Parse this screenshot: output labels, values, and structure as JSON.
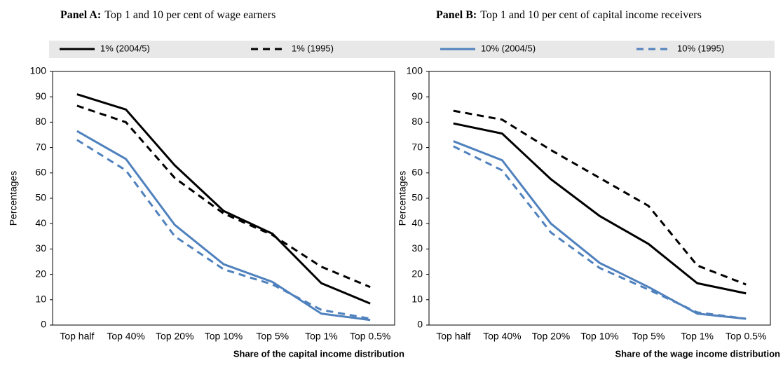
{
  "chart_data": [
    {
      "type": "line",
      "title_label": "Panel A:",
      "title": "Top 1 and 10 per cent of wage earners",
      "x_label": "Share of the capital income distribution",
      "y_label": "Percentages",
      "categories": [
        "Top half",
        "Top 40%",
        "Top 20%",
        "Top 10%",
        "Top 5%",
        "Top 1%",
        "Top 0.5%"
      ],
      "ylim": [
        0,
        100
      ],
      "yticks": [
        0,
        10,
        20,
        30,
        40,
        50,
        60,
        70,
        80,
        90,
        100
      ],
      "series": [
        {
          "name": "1% (2004/5)",
          "color": "#000000",
          "dashed": false,
          "values": [
            91,
            85,
            63,
            45,
            36,
            16.5,
            8.5
          ]
        },
        {
          "name": "1% (1995)",
          "color": "#000000",
          "dashed": true,
          "values": [
            86.5,
            80,
            58,
            44,
            35.5,
            23,
            15
          ]
        },
        {
          "name": "10% (2004/5)",
          "color": "#4f81bd",
          "dashed": false,
          "values": [
            76.5,
            65.5,
            39.5,
            24,
            17,
            4.5,
            2
          ]
        },
        {
          "name": "10% (1995)",
          "color": "#4f81bd",
          "dashed": true,
          "values": [
            73,
            61,
            35,
            22,
            16,
            6,
            2.5
          ]
        }
      ]
    },
    {
      "type": "line",
      "title_label": "Panel B:",
      "title": "Top 1 and 10 per cent of capital income receivers",
      "x_label": "Share of the wage income distribution",
      "y_label": "Percentages",
      "categories": [
        "Top half",
        "Top 40%",
        "Top 20%",
        "Top 10%",
        "Top 5%",
        "Top 1%",
        "Top 0.5%"
      ],
      "ylim": [
        0,
        100
      ],
      "yticks": [
        0,
        10,
        20,
        30,
        40,
        50,
        60,
        70,
        80,
        90,
        100
      ],
      "series": [
        {
          "color": "#000000",
          "dashed": false,
          "values": [
            79.5,
            75.5,
            57.5,
            43,
            32,
            16.5,
            12.5
          ]
        },
        {
          "color": "#000000",
          "dashed": true,
          "values": [
            84.5,
            81,
            69,
            58,
            47,
            23.5,
            16
          ]
        },
        {
          "color": "#4f81bd",
          "dashed": false,
          "values": [
            72.5,
            65,
            40,
            24.5,
            15,
            4.5,
            2.5
          ]
        },
        {
          "color": "#4f81bd",
          "dashed": true,
          "values": [
            70.5,
            61,
            36.5,
            22.5,
            14,
            5,
            2.5
          ]
        }
      ]
    }
  ]
}
